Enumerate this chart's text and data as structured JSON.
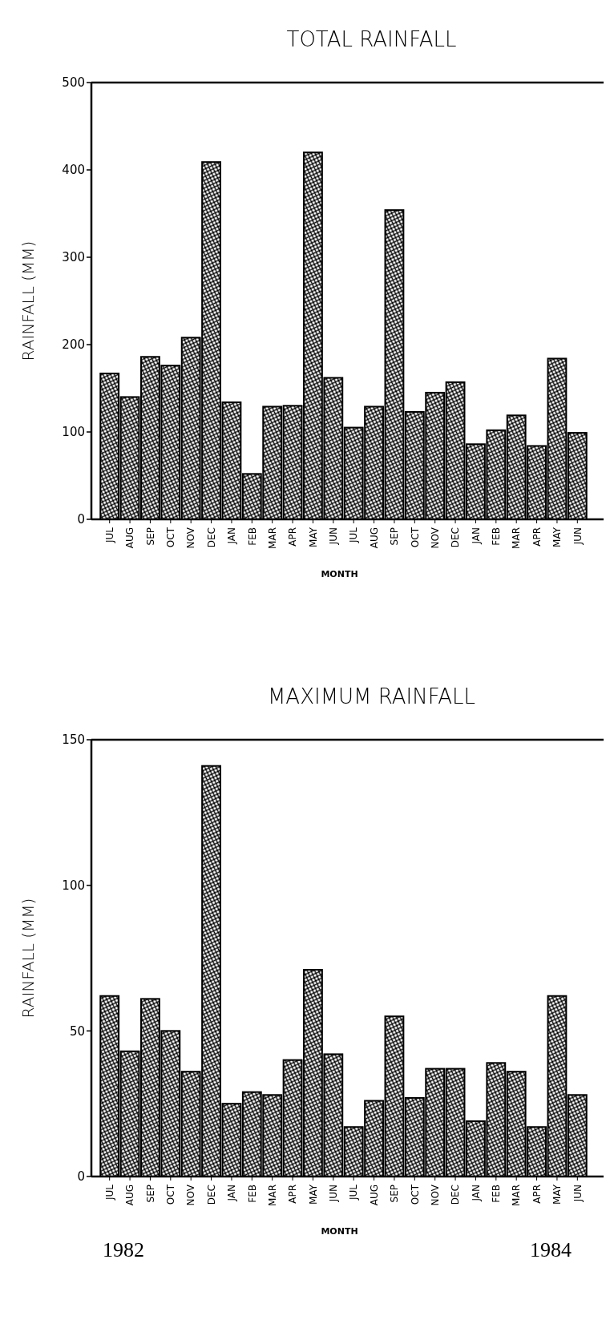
{
  "chart_data": [
    {
      "type": "bar",
      "title": "TOTAL RAINFALL",
      "xlabel": "MONTH",
      "ylabel": "RAINFALL (MM)",
      "categories": [
        "JUL",
        "AUG",
        "SEP",
        "OCT",
        "NOV",
        "DEC",
        "JAN",
        "FEB",
        "MAR",
        "APR",
        "MAY",
        "JUN",
        "JUL",
        "AUG",
        "SEP",
        "OCT",
        "NOV",
        "DEC",
        "JAN",
        "FEB",
        "MAR",
        "APR",
        "MAY",
        "JUN"
      ],
      "values": [
        167,
        140,
        186,
        176,
        208,
        409,
        134,
        52,
        129,
        130,
        420,
        162,
        105,
        129,
        354,
        123,
        145,
        157,
        86,
        102,
        119,
        84,
        184,
        99
      ],
      "color": "#000000",
      "ylim": [
        0,
        500
      ],
      "yticks": [
        0,
        100,
        200,
        300,
        400,
        500
      ]
    },
    {
      "type": "bar",
      "title": "MAXIMUM RAINFALL",
      "xlabel": "MONTH",
      "ylabel": "RAINFALL (MM)",
      "categories": [
        "JUL",
        "AUG",
        "SEP",
        "OCT",
        "NOV",
        "DEC",
        "JAN",
        "FEB",
        "MAR",
        "APR",
        "MAY",
        "JUN",
        "JUL",
        "AUG",
        "SEP",
        "OCT",
        "NOV",
        "DEC",
        "JAN",
        "FEB",
        "MAR",
        "APR",
        "MAY",
        "JUN"
      ],
      "values": [
        62,
        43,
        61,
        50,
        36,
        141,
        25,
        29,
        28,
        40,
        71,
        42,
        17,
        26,
        55,
        27,
        37,
        37,
        19,
        39,
        36,
        17,
        62,
        28
      ],
      "color": "#000000",
      "ylim": [
        0,
        150
      ],
      "yticks": [
        0,
        50,
        100,
        150
      ],
      "annotations": [
        "1982",
        "1984"
      ]
    }
  ]
}
